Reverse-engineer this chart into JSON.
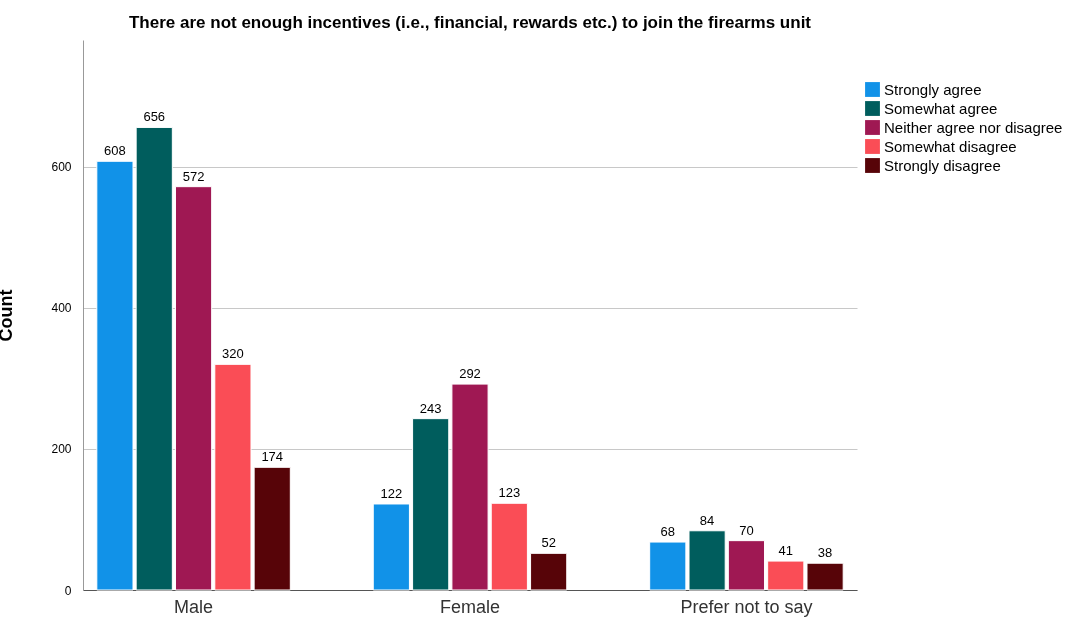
{
  "chart_data": {
    "type": "bar",
    "title": "There are not enough incentives (i.e., financial, rewards etc.) to join the firearms unit",
    "ylabel": "Count",
    "categories": [
      "Male",
      "Female",
      "Prefer not to say"
    ],
    "series": [
      {
        "name": "Strongly agree",
        "color": "#1192e8",
        "values": [
          608,
          122,
          68
        ]
      },
      {
        "name": "Somewhat agree",
        "color": "#005d5d",
        "values": [
          656,
          243,
          84
        ]
      },
      {
        "name": "Neither agree nor disagree",
        "color": "#9f1853",
        "values": [
          572,
          292,
          70
        ]
      },
      {
        "name": "Somewhat disagree",
        "color": "#fa4d56",
        "values": [
          320,
          123,
          41
        ]
      },
      {
        "name": "Strongly disagree",
        "color": "#570408",
        "values": [
          174,
          52,
          38
        ]
      }
    ],
    "ylim": [
      0,
      780
    ],
    "yticks": [
      0,
      200,
      400,
      600
    ],
    "grid": "y",
    "legend": "top right",
    "data_labels": true
  }
}
